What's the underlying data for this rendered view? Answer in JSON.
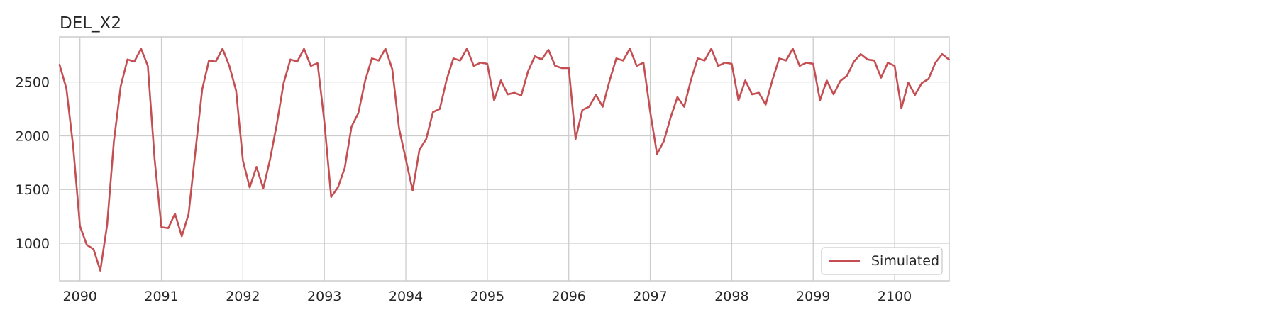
{
  "chart_data": {
    "type": "line",
    "title": "DEL_X2",
    "xlabel": "",
    "ylabel": "",
    "x_tick_labels": [
      "2090",
      "2091",
      "2092",
      "2093",
      "2094",
      "2095",
      "2096",
      "2097",
      "2098",
      "2099",
      "2100"
    ],
    "x_tick_values": [
      2090,
      2091,
      2092,
      2093,
      2094,
      2095,
      2096,
      2097,
      2098,
      2099,
      2100
    ],
    "y_tick_labels": [
      "1000",
      "1500",
      "2000",
      "2500"
    ],
    "y_tick_values": [
      1000,
      1500,
      2000,
      2500
    ],
    "xlim": [
      2089.75,
      2100.67
    ],
    "ylim": [
      650,
      2920
    ],
    "grid": true,
    "legend_position": "lower-right",
    "x_start": 2089.75,
    "x_step": 0.0833333,
    "series": [
      {
        "name": "Simulated",
        "color": "#c44e52",
        "values": [
          2660,
          2440,
          1900,
          1160,
          985,
          945,
          745,
          1170,
          1950,
          2460,
          2710,
          2690,
          2810,
          2650,
          1780,
          1150,
          1140,
          1275,
          1065,
          1270,
          1850,
          2430,
          2700,
          2690,
          2810,
          2650,
          2420,
          1770,
          1520,
          1710,
          1510,
          1780,
          2110,
          2490,
          2710,
          2690,
          2810,
          2650,
          2675,
          2130,
          1430,
          1520,
          1700,
          2085,
          2210,
          2510,
          2720,
          2700,
          2810,
          2620,
          2070,
          1780,
          1490,
          1870,
          1970,
          2220,
          2250,
          2520,
          2720,
          2700,
          2810,
          2650,
          2680,
          2670,
          2330,
          2515,
          2385,
          2400,
          2375,
          2600,
          2740,
          2710,
          2800,
          2650,
          2630,
          2630,
          1970,
          2240,
          2270,
          2380,
          2270,
          2510,
          2720,
          2700,
          2810,
          2650,
          2680,
          2220,
          1830,
          1950,
          2170,
          2360,
          2270,
          2520,
          2720,
          2700,
          2810,
          2650,
          2680,
          2670,
          2330,
          2515,
          2385,
          2400,
          2290,
          2520,
          2720,
          2700,
          2810,
          2650,
          2680,
          2670,
          2330,
          2515,
          2385,
          2510,
          2560,
          2690,
          2760,
          2710,
          2700,
          2540,
          2680,
          2650,
          2255,
          2495,
          2380,
          2490,
          2530,
          2680,
          2760,
          2710
        ]
      }
    ]
  }
}
